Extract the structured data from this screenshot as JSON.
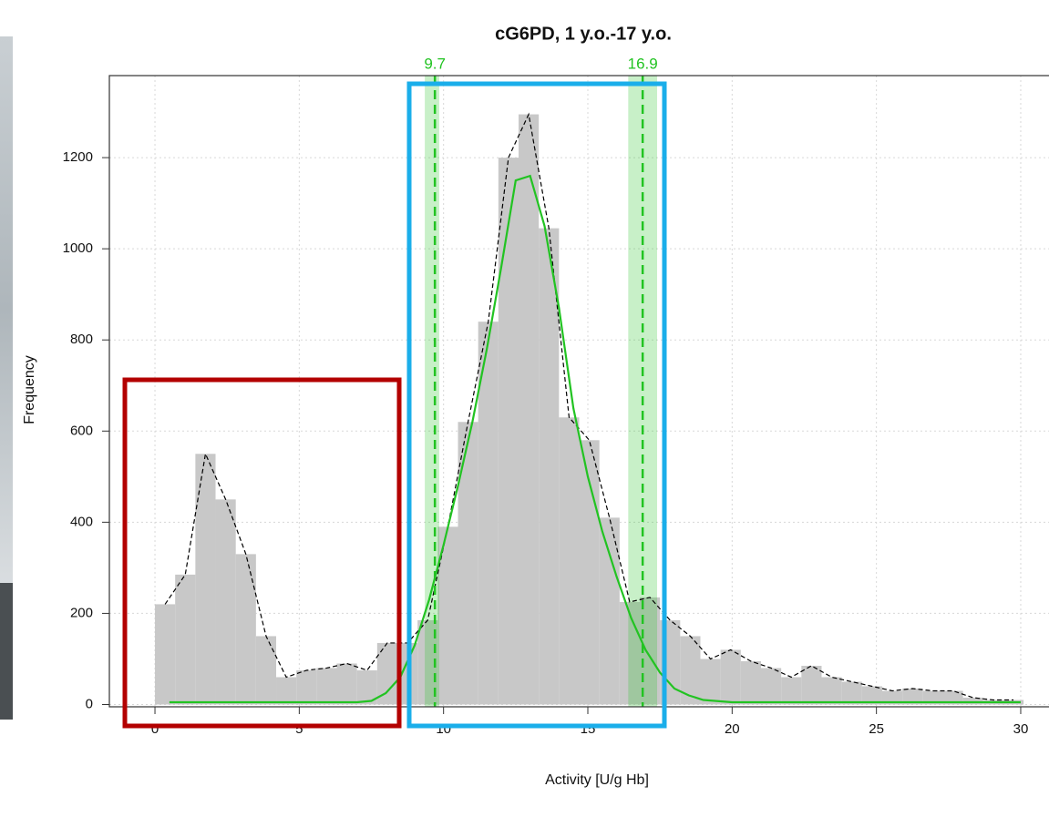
{
  "chart_data": {
    "type": "histogram",
    "title": "cG6PD, 1 y.o.-17 y.o.",
    "x_label": "Activity [U/g Hb]",
    "y_label": "Frequency",
    "bins": [
      0,
      0.7,
      1.4,
      2.1,
      2.8,
      3.5,
      4.2,
      4.9,
      5.6,
      6.3,
      7,
      7.7,
      8.4,
      9.1,
      9.8,
      10.5,
      11.2,
      11.9,
      12.6,
      13.3,
      14,
      14.7,
      15.4,
      16.1,
      16.8,
      17.5,
      18.2,
      18.9,
      19.6,
      20.3,
      21,
      21.7,
      22.4,
      23.1,
      23.8,
      24.5,
      25.2,
      25.9,
      26.6,
      27.3,
      28,
      28.7,
      29.4,
      30.1
    ],
    "values": [
      220,
      285,
      550,
      450,
      330,
      150,
      60,
      75,
      80,
      90,
      75,
      135,
      135,
      185,
      390,
      620,
      840,
      1200,
      1295,
      1045,
      630,
      580,
      410,
      225,
      235,
      185,
      150,
      100,
      120,
      95,
      80,
      60,
      85,
      60,
      50,
      40,
      30,
      35,
      30,
      30,
      15,
      10,
      10
    ],
    "color": "#c8c8c8",
    "lines": [
      {
        "color": "#000000",
        "dashed": true,
        "x": [
          0.35,
          1.05,
          1.75,
          2.45,
          3.15,
          3.85,
          4.55,
          5.25,
          5.95,
          6.65,
          7.35,
          8.05,
          8.75,
          9.45,
          10.15,
          10.85,
          11.55,
          12.25,
          12.95,
          13.65,
          14.35,
          15.05,
          15.75,
          16.45,
          17.15,
          17.85,
          18.55,
          19.25,
          19.95,
          20.65,
          21.35,
          22.05,
          22.75,
          23.45,
          24.15,
          24.85,
          25.55,
          26.25,
          26.95,
          27.65,
          28.35,
          29.05,
          29.75
        ],
        "values": [
          220,
          285,
          550,
          450,
          330,
          150,
          60,
          75,
          80,
          90,
          75,
          135,
          135,
          185,
          390,
          620,
          840,
          1200,
          1295,
          1045,
          630,
          580,
          410,
          225,
          235,
          185,
          150,
          100,
          120,
          95,
          80,
          60,
          85,
          60,
          50,
          40,
          30,
          35,
          30,
          30,
          15,
          10,
          10
        ]
      },
      {
        "color": "#22c322",
        "dashed": false,
        "x": [
          0.5,
          7,
          7.5,
          8,
          8.5,
          9,
          9.5,
          10,
          10.5,
          11,
          11.5,
          12,
          12.5,
          13,
          13.5,
          14,
          14.5,
          15,
          15.5,
          16,
          16.5,
          17,
          17.5,
          18,
          18.5,
          19,
          20,
          30
        ],
        "values": [
          5,
          5,
          8,
          25,
          60,
          130,
          230,
          350,
          480,
          620,
          780,
          960,
          1150,
          1160,
          1050,
          870,
          650,
          500,
          380,
          280,
          190,
          120,
          70,
          35,
          20,
          10,
          5,
          5
        ]
      }
    ],
    "reference_lines": [
      9.7,
      16.9
    ],
    "reference_bands": [
      [
        9.35,
        9.85
      ],
      [
        16.4,
        17.4
      ]
    ],
    "reference_color": "#22c322",
    "xlim": [
      -1.58,
      30.98
    ],
    "xticks": [
      0,
      5,
      10,
      15,
      20,
      25,
      30
    ],
    "ylim": [
      -5,
      1380
    ],
    "yticks": [
      0,
      200,
      400,
      600,
      800,
      1000,
      1200
    ],
    "grid": true
  }
}
